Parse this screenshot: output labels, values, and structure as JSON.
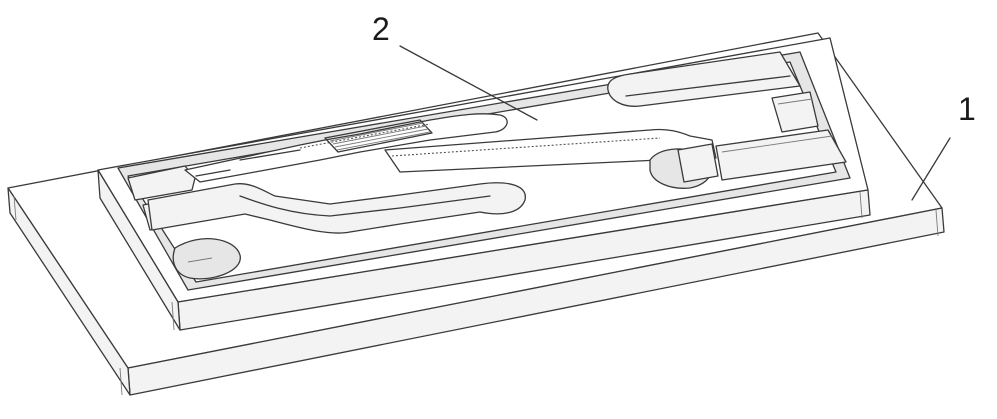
{
  "figure": {
    "labels": [
      {
        "id": "label-1",
        "text": "1"
      },
      {
        "id": "label-2",
        "text": "2"
      }
    ]
  }
}
